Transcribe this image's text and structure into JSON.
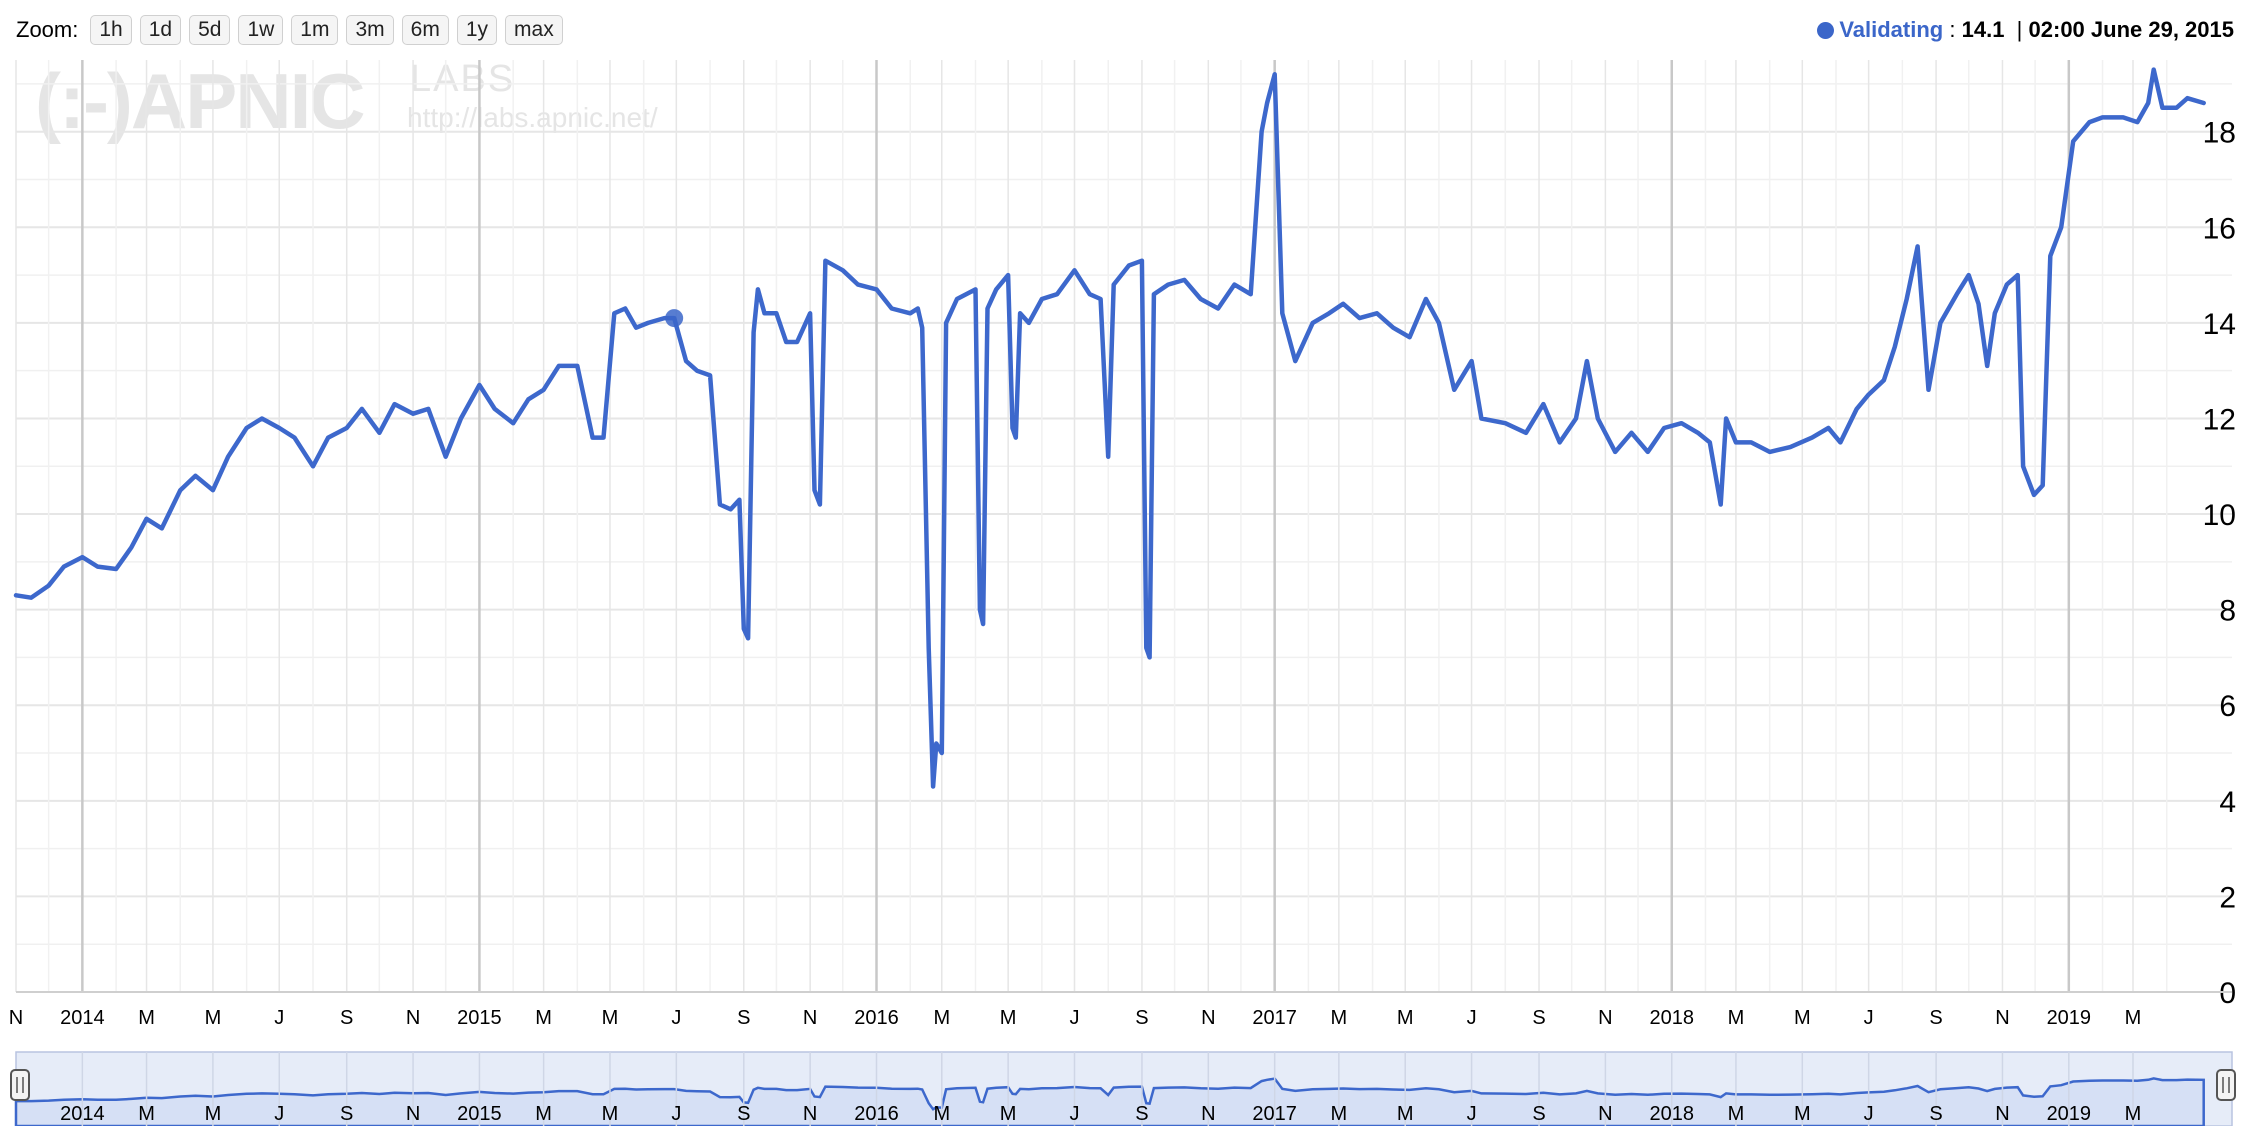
{
  "zoom": {
    "label": "Zoom:",
    "buttons": [
      "1h",
      "1d",
      "5d",
      "1w",
      "1m",
      "3m",
      "6m",
      "1y",
      "max"
    ]
  },
  "legend": {
    "series_name": "Validating",
    "separator": ":",
    "value": "14.1",
    "divider": "|",
    "time": "02:00 June 29, 2015",
    "color": "#3b66c9"
  },
  "watermark": {
    "logo_text": "(:-)APNIC",
    "labs": "LABS",
    "url": "http://labs.apnic.net/"
  },
  "colors": {
    "series": "#3d68cc",
    "grid": "#e6e6e6",
    "year_grid": "#c8c8c8",
    "navigator_fill": "#e6ecf8"
  },
  "chart_data": {
    "type": "line",
    "title": "",
    "xlabel": "",
    "ylabel": "",
    "ylim": [
      0,
      19.5
    ],
    "y_ticks": [
      0,
      2,
      4,
      6,
      8,
      10,
      12,
      14,
      16,
      18
    ],
    "x_range": [
      "2013-11-01",
      "2019-05-31"
    ],
    "y_axis_side": "right",
    "grid": true,
    "highlight": {
      "x": "2015-06-29",
      "y": 14.1
    },
    "x_ticks": [
      {
        "date": "2013-11-01",
        "label": "N"
      },
      {
        "date": "2014-01-01",
        "label": "2014"
      },
      {
        "date": "2014-03-01",
        "label": "M"
      },
      {
        "date": "2014-05-01",
        "label": "M"
      },
      {
        "date": "2014-07-01",
        "label": "J"
      },
      {
        "date": "2014-09-01",
        "label": "S"
      },
      {
        "date": "2014-11-01",
        "label": "N"
      },
      {
        "date": "2015-01-01",
        "label": "2015"
      },
      {
        "date": "2015-03-01",
        "label": "M"
      },
      {
        "date": "2015-05-01",
        "label": "M"
      },
      {
        "date": "2015-07-01",
        "label": "J"
      },
      {
        "date": "2015-09-01",
        "label": "S"
      },
      {
        "date": "2015-11-01",
        "label": "N"
      },
      {
        "date": "2016-01-01",
        "label": "2016"
      },
      {
        "date": "2016-03-01",
        "label": "M"
      },
      {
        "date": "2016-05-01",
        "label": "M"
      },
      {
        "date": "2016-07-01",
        "label": "J"
      },
      {
        "date": "2016-09-01",
        "label": "S"
      },
      {
        "date": "2016-11-01",
        "label": "N"
      },
      {
        "date": "2017-01-01",
        "label": "2017"
      },
      {
        "date": "2017-03-01",
        "label": "M"
      },
      {
        "date": "2017-05-01",
        "label": "M"
      },
      {
        "date": "2017-07-01",
        "label": "J"
      },
      {
        "date": "2017-09-01",
        "label": "S"
      },
      {
        "date": "2017-11-01",
        "label": "N"
      },
      {
        "date": "2018-01-01",
        "label": "2018"
      },
      {
        "date": "2018-03-01",
        "label": "M"
      },
      {
        "date": "2018-05-01",
        "label": "M"
      },
      {
        "date": "2018-07-01",
        "label": "J"
      },
      {
        "date": "2018-09-01",
        "label": "S"
      },
      {
        "date": "2018-11-01",
        "label": "N"
      },
      {
        "date": "2019-01-01",
        "label": "2019"
      },
      {
        "date": "2019-03-01",
        "label": "M"
      }
    ],
    "navigator_ticks": [
      {
        "date": "2014-01-01",
        "label": "2014"
      },
      {
        "date": "2014-03-01",
        "label": "M"
      },
      {
        "date": "2014-05-01",
        "label": "M"
      },
      {
        "date": "2014-07-01",
        "label": "J"
      },
      {
        "date": "2014-09-01",
        "label": "S"
      },
      {
        "date": "2014-11-01",
        "label": "N"
      },
      {
        "date": "2015-01-01",
        "label": "2015"
      },
      {
        "date": "2015-03-01",
        "label": "M"
      },
      {
        "date": "2015-05-01",
        "label": "M"
      },
      {
        "date": "2015-07-01",
        "label": "J"
      },
      {
        "date": "2015-09-01",
        "label": "S"
      },
      {
        "date": "2015-11-01",
        "label": "N"
      },
      {
        "date": "2016-01-01",
        "label": "2016"
      },
      {
        "date": "2016-03-01",
        "label": "M"
      },
      {
        "date": "2016-05-01",
        "label": "M"
      },
      {
        "date": "2016-07-01",
        "label": "J"
      },
      {
        "date": "2016-09-01",
        "label": "S"
      },
      {
        "date": "2016-11-01",
        "label": "N"
      },
      {
        "date": "2017-01-01",
        "label": "2017"
      },
      {
        "date": "2017-03-01",
        "label": "M"
      },
      {
        "date": "2017-05-01",
        "label": "M"
      },
      {
        "date": "2017-07-01",
        "label": "J"
      },
      {
        "date": "2017-09-01",
        "label": "S"
      },
      {
        "date": "2017-11-01",
        "label": "N"
      },
      {
        "date": "2018-01-01",
        "label": "2018"
      },
      {
        "date": "2018-03-01",
        "label": "M"
      },
      {
        "date": "2018-05-01",
        "label": "M"
      },
      {
        "date": "2018-07-01",
        "label": "J"
      },
      {
        "date": "2018-09-01",
        "label": "S"
      },
      {
        "date": "2018-11-01",
        "label": "N"
      },
      {
        "date": "2019-01-01",
        "label": "2019"
      },
      {
        "date": "2019-03-01",
        "label": "M"
      }
    ],
    "series": [
      {
        "name": "Validating",
        "points": [
          [
            "2013-11-01",
            8.3
          ],
          [
            "2013-11-15",
            8.25
          ],
          [
            "2013-12-01",
            8.5
          ],
          [
            "2013-12-15",
            8.9
          ],
          [
            "2014-01-01",
            9.1
          ],
          [
            "2014-01-15",
            8.9
          ],
          [
            "2014-02-01",
            8.85
          ],
          [
            "2014-02-15",
            9.3
          ],
          [
            "2014-03-01",
            9.9
          ],
          [
            "2014-03-15",
            9.7
          ],
          [
            "2014-04-01",
            10.5
          ],
          [
            "2014-04-15",
            10.8
          ],
          [
            "2014-05-01",
            10.5
          ],
          [
            "2014-05-15",
            11.2
          ],
          [
            "2014-06-01",
            11.8
          ],
          [
            "2014-06-15",
            12.0
          ],
          [
            "2014-07-01",
            11.8
          ],
          [
            "2014-07-15",
            11.6
          ],
          [
            "2014-08-01",
            11.0
          ],
          [
            "2014-08-15",
            11.6
          ],
          [
            "2014-09-01",
            11.8
          ],
          [
            "2014-09-15",
            12.2
          ],
          [
            "2014-10-01",
            11.7
          ],
          [
            "2014-10-15",
            12.3
          ],
          [
            "2014-11-01",
            12.1
          ],
          [
            "2014-11-15",
            12.2
          ],
          [
            "2014-12-01",
            11.2
          ],
          [
            "2014-12-15",
            12.0
          ],
          [
            "2015-01-01",
            12.7
          ],
          [
            "2015-01-15",
            12.2
          ],
          [
            "2015-02-01",
            11.9
          ],
          [
            "2015-02-15",
            12.4
          ],
          [
            "2015-03-01",
            12.6
          ],
          [
            "2015-03-15",
            13.1
          ],
          [
            "2015-04-01",
            13.1
          ],
          [
            "2015-04-15",
            11.6
          ],
          [
            "2015-04-25",
            11.6
          ],
          [
            "2015-05-05",
            14.2
          ],
          [
            "2015-05-15",
            14.3
          ],
          [
            "2015-05-25",
            13.9
          ],
          [
            "2015-06-05",
            14.0
          ],
          [
            "2015-06-20",
            14.1
          ],
          [
            "2015-06-29",
            14.1
          ],
          [
            "2015-07-10",
            13.2
          ],
          [
            "2015-07-20",
            13.0
          ],
          [
            "2015-08-01",
            12.9
          ],
          [
            "2015-08-10",
            10.2
          ],
          [
            "2015-08-20",
            10.1
          ],
          [
            "2015-08-28",
            10.3
          ],
          [
            "2015-09-01",
            7.6
          ],
          [
            "2015-09-05",
            7.4
          ],
          [
            "2015-09-10",
            13.8
          ],
          [
            "2015-09-14",
            14.7
          ],
          [
            "2015-09-20",
            14.2
          ],
          [
            "2015-10-01",
            14.2
          ],
          [
            "2015-10-10",
            13.6
          ],
          [
            "2015-10-20",
            13.6
          ],
          [
            "2015-11-01",
            14.2
          ],
          [
            "2015-11-05",
            10.5
          ],
          [
            "2015-11-10",
            10.2
          ],
          [
            "2015-11-15",
            15.3
          ],
          [
            "2015-12-01",
            15.1
          ],
          [
            "2015-12-15",
            14.8
          ],
          [
            "2016-01-01",
            14.7
          ],
          [
            "2016-01-15",
            14.3
          ],
          [
            "2016-02-01",
            14.2
          ],
          [
            "2016-02-08",
            14.3
          ],
          [
            "2016-02-12",
            13.9
          ],
          [
            "2016-02-18",
            7.2
          ],
          [
            "2016-02-22",
            4.3
          ],
          [
            "2016-02-25",
            5.2
          ],
          [
            "2016-03-01",
            5.0
          ],
          [
            "2016-03-05",
            14.0
          ],
          [
            "2016-03-15",
            14.5
          ],
          [
            "2016-04-01",
            14.7
          ],
          [
            "2016-04-05",
            8.0
          ],
          [
            "2016-04-08",
            7.7
          ],
          [
            "2016-04-12",
            14.3
          ],
          [
            "2016-04-20",
            14.7
          ],
          [
            "2016-05-01",
            15.0
          ],
          [
            "2016-05-05",
            11.8
          ],
          [
            "2016-05-08",
            11.6
          ],
          [
            "2016-05-12",
            14.2
          ],
          [
            "2016-05-20",
            14.0
          ],
          [
            "2016-06-01",
            14.5
          ],
          [
            "2016-06-15",
            14.6
          ],
          [
            "2016-07-01",
            15.1
          ],
          [
            "2016-07-15",
            14.6
          ],
          [
            "2016-07-25",
            14.5
          ],
          [
            "2016-08-01",
            11.2
          ],
          [
            "2016-08-06",
            14.8
          ],
          [
            "2016-08-20",
            15.2
          ],
          [
            "2016-09-01",
            15.3
          ],
          [
            "2016-09-05",
            7.2
          ],
          [
            "2016-09-08",
            7.0
          ],
          [
            "2016-09-12",
            14.6
          ],
          [
            "2016-09-25",
            14.8
          ],
          [
            "2016-10-10",
            14.9
          ],
          [
            "2016-10-25",
            14.5
          ],
          [
            "2016-11-10",
            14.3
          ],
          [
            "2016-11-25",
            14.8
          ],
          [
            "2016-12-10",
            14.6
          ],
          [
            "2016-12-20",
            18.0
          ],
          [
            "2016-12-25",
            18.6
          ],
          [
            "2017-01-01",
            19.2
          ],
          [
            "2017-01-08",
            14.2
          ],
          [
            "2017-01-20",
            13.2
          ],
          [
            "2017-02-05",
            14.0
          ],
          [
            "2017-02-20",
            14.2
          ],
          [
            "2017-03-05",
            14.4
          ],
          [
            "2017-03-20",
            14.1
          ],
          [
            "2017-04-05",
            14.2
          ],
          [
            "2017-04-20",
            13.9
          ],
          [
            "2017-05-05",
            13.7
          ],
          [
            "2017-05-20",
            14.5
          ],
          [
            "2017-06-01",
            14.0
          ],
          [
            "2017-06-15",
            12.6
          ],
          [
            "2017-07-01",
            13.2
          ],
          [
            "2017-07-10",
            12.0
          ],
          [
            "2017-08-01",
            11.9
          ],
          [
            "2017-08-20",
            11.7
          ],
          [
            "2017-09-05",
            12.3
          ],
          [
            "2017-09-20",
            11.5
          ],
          [
            "2017-10-05",
            12.0
          ],
          [
            "2017-10-15",
            13.2
          ],
          [
            "2017-10-25",
            12.0
          ],
          [
            "2017-11-10",
            11.3
          ],
          [
            "2017-11-25",
            11.7
          ],
          [
            "2017-12-10",
            11.3
          ],
          [
            "2017-12-25",
            11.8
          ],
          [
            "2018-01-10",
            11.9
          ],
          [
            "2018-01-25",
            11.7
          ],
          [
            "2018-02-05",
            11.5
          ],
          [
            "2018-02-15",
            10.2
          ],
          [
            "2018-02-20",
            12.0
          ],
          [
            "2018-03-01",
            11.5
          ],
          [
            "2018-03-15",
            11.5
          ],
          [
            "2018-04-01",
            11.3
          ],
          [
            "2018-04-20",
            11.4
          ],
          [
            "2018-05-10",
            11.6
          ],
          [
            "2018-05-25",
            11.8
          ],
          [
            "2018-06-05",
            11.5
          ],
          [
            "2018-06-20",
            12.2
          ],
          [
            "2018-07-01",
            12.5
          ],
          [
            "2018-07-15",
            12.8
          ],
          [
            "2018-07-25",
            13.5
          ],
          [
            "2018-08-05",
            14.5
          ],
          [
            "2018-08-15",
            15.6
          ],
          [
            "2018-08-25",
            12.6
          ],
          [
            "2018-09-05",
            14.0
          ],
          [
            "2018-09-20",
            14.6
          ],
          [
            "2018-10-01",
            15.0
          ],
          [
            "2018-10-10",
            14.4
          ],
          [
            "2018-10-18",
            13.1
          ],
          [
            "2018-10-25",
            14.2
          ],
          [
            "2018-11-05",
            14.8
          ],
          [
            "2018-11-15",
            15.0
          ],
          [
            "2018-11-20",
            11.0
          ],
          [
            "2018-11-30",
            10.4
          ],
          [
            "2018-12-08",
            10.6
          ],
          [
            "2018-12-15",
            15.4
          ],
          [
            "2018-12-25",
            16.0
          ],
          [
            "2019-01-05",
            17.8
          ],
          [
            "2019-01-20",
            18.2
          ],
          [
            "2019-02-01",
            18.3
          ],
          [
            "2019-02-20",
            18.3
          ],
          [
            "2019-03-05",
            18.2
          ],
          [
            "2019-03-15",
            18.6
          ],
          [
            "2019-03-20",
            19.3
          ],
          [
            "2019-03-28",
            18.5
          ],
          [
            "2019-04-10",
            18.5
          ],
          [
            "2019-04-20",
            18.7
          ],
          [
            "2019-05-05",
            18.6
          ]
        ]
      }
    ]
  }
}
